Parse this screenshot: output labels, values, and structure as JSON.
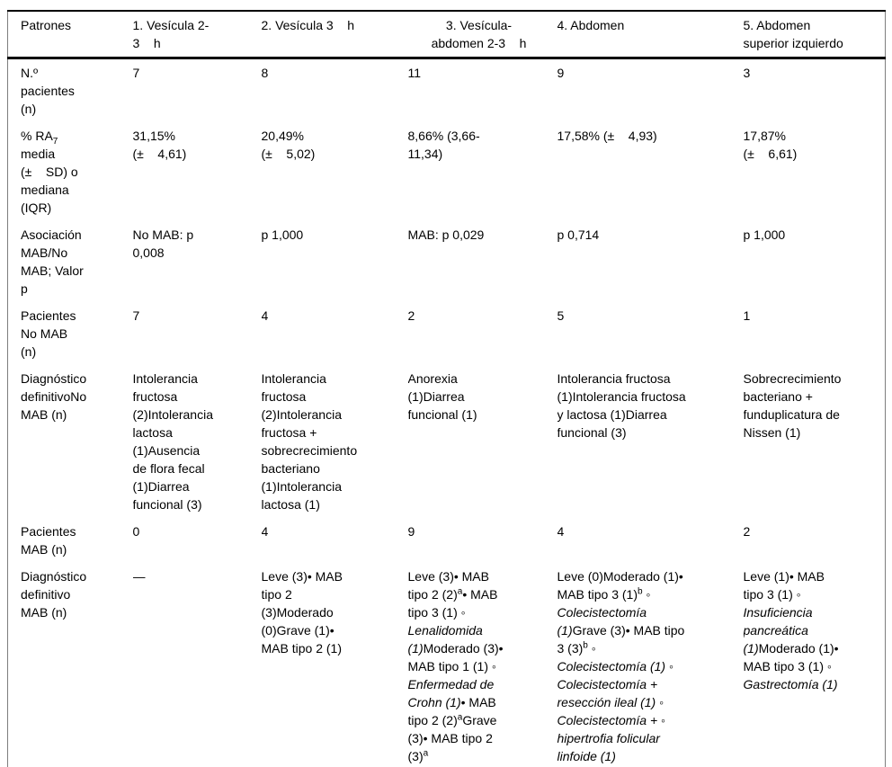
{
  "table": {
    "header": [
      [
        {
          "t": "Patrones"
        }
      ],
      [
        {
          "t": "1. Vesícula 2-\n3    h"
        }
      ],
      [
        {
          "t": "2. Vesícula 3    h"
        }
      ],
      [
        {
          "t": "3. Vesícula-\nabdomen 2-3    h"
        }
      ],
      [
        {
          "t": "4. Abdomen"
        }
      ],
      [
        {
          "t": "5. Abdomen\nsuperior izquierdo"
        }
      ]
    ],
    "rows": [
      {
        "label": [
          {
            "t": "N.º\npacientes\n(n)"
          }
        ],
        "cells": [
          [
            {
              "t": "7"
            }
          ],
          [
            {
              "t": "8"
            }
          ],
          [
            {
              "t": "11"
            }
          ],
          [
            {
              "t": "9"
            }
          ],
          [
            {
              "t": "3"
            }
          ]
        ]
      },
      {
        "label": [
          {
            "t": "% RA"
          },
          {
            "t": "7",
            "s": "sub"
          },
          {
            "t": "\nmedia\n(±    SD) o\nmediana\n(IQR)"
          }
        ],
        "cells": [
          [
            {
              "t": "31,15%\n(±    4,61)"
            }
          ],
          [
            {
              "t": "20,49%\n(±    5,02)"
            }
          ],
          [
            {
              "t": "8,66% (3,66-\n11,34)"
            }
          ],
          [
            {
              "t": "17,58% (±    4,93)"
            }
          ],
          [
            {
              "t": "17,87%\n(±    6,61)"
            }
          ]
        ]
      },
      {
        "label": [
          {
            "t": "Asociación\nMAB/No\nMAB; Valor\np"
          }
        ],
        "cells": [
          [
            {
              "t": "No MAB: p\n0,008"
            }
          ],
          [
            {
              "t": "p 1,000"
            }
          ],
          [
            {
              "t": "MAB: p 0,029"
            }
          ],
          [
            {
              "t": "p 0,714"
            }
          ],
          [
            {
              "t": "p 1,000"
            }
          ]
        ]
      },
      {
        "label": [
          {
            "t": "Pacientes\nNo MAB\n(n)"
          }
        ],
        "cells": [
          [
            {
              "t": "7"
            }
          ],
          [
            {
              "t": "4"
            }
          ],
          [
            {
              "t": "2"
            }
          ],
          [
            {
              "t": "5"
            }
          ],
          [
            {
              "t": "1"
            }
          ]
        ]
      },
      {
        "label": [
          {
            "t": "Diagnóstico\ndefinitivoNo\nMAB (n)"
          }
        ],
        "cells": [
          [
            {
              "t": "Intolerancia\nfructosa\n(2)Intolerancia\nlactosa\n(1)Ausencia\nde flora fecal\n(1)Diarrea\nfuncional (3)"
            }
          ],
          [
            {
              "t": "Intolerancia\nfructosa\n(2)Intolerancia\nfructosa +\nsobrecrecimiento\nbacteriano\n(1)Intolerancia\nlactosa (1)"
            }
          ],
          [
            {
              "t": "Anorexia\n(1)Diarrea\nfuncional (1)"
            }
          ],
          [
            {
              "t": "Intolerancia fructosa\n(1)Intolerancia fructosa\ny lactosa (1)Diarrea\nfuncional (3)"
            }
          ],
          [
            {
              "t": "Sobrecrecimiento\nbacteriano +\nfunduplicatura de\nNissen (1)"
            }
          ]
        ]
      },
      {
        "label": [
          {
            "t": "Pacientes\nMAB (n)"
          }
        ],
        "cells": [
          [
            {
              "t": "0"
            }
          ],
          [
            {
              "t": "4"
            }
          ],
          [
            {
              "t": "9"
            }
          ],
          [
            {
              "t": "4"
            }
          ],
          [
            {
              "t": "2"
            }
          ]
        ]
      },
      {
        "label": [
          {
            "t": "Diagnóstico\ndefinitivo\nMAB (n)"
          }
        ],
        "cells": [
          [
            {
              "t": "—"
            }
          ],
          [
            {
              "t": "Leve (3)• MAB\ntipo 2\n(3)Moderado\n(0)Grave (1)•\nMAB tipo 2 (1)"
            }
          ],
          [
            {
              "t": "Leve (3)• MAB\ntipo 2 (2)"
            },
            {
              "t": "a",
              "s": "sup"
            },
            {
              "t": "• MAB\ntipo 3 (1) ◦\n"
            },
            {
              "t": "Lenalidomida\n(1)",
              "s": "i"
            },
            {
              "t": "Moderado (3)•\nMAB tipo 1 (1) ◦\n"
            },
            {
              "t": "Enfermedad de\nCrohn (1)",
              "s": "i"
            },
            {
              "t": "• MAB\ntipo 2 (2)"
            },
            {
              "t": "a",
              "s": "sup"
            },
            {
              "t": "Grave\n(3)• MAB tipo 2\n(3)"
            },
            {
              "t": "a",
              "s": "sup"
            }
          ],
          [
            {
              "t": "Leve (0)Moderado (1)•\nMAB tipo 3 (1)"
            },
            {
              "t": "b",
              "s": "sup"
            },
            {
              "t": " ◦\n"
            },
            {
              "t": "Colecistectomía\n(1)",
              "s": "i"
            },
            {
              "t": "Grave (3)• MAB tipo\n3 (3)"
            },
            {
              "t": "b",
              "s": "sup"
            },
            {
              "t": " ◦\n"
            },
            {
              "t": "Colecistectomía (1)",
              "s": "i"
            },
            {
              "t": " ◦\n"
            },
            {
              "t": "Colecistectomía +\nresección ileal (1)",
              "s": "i"
            },
            {
              "t": " ◦\n"
            },
            {
              "t": "Colecistectomía +",
              "s": "i"
            },
            {
              "t": " ◦\n"
            },
            {
              "t": "hipertrofia folicular\nlinfoide (1)",
              "s": "i"
            }
          ],
          [
            {
              "t": "Leve (1)• MAB\ntipo 3 (1) ◦\n"
            },
            {
              "t": "Insuficiencia\npancreática\n(1)",
              "s": "i"
            },
            {
              "t": "Moderado (1)•\nMAB tipo 3 (1) ◦\n"
            },
            {
              "t": "Gastrectomía (1)",
              "s": "i"
            }
          ]
        ]
      }
    ]
  }
}
